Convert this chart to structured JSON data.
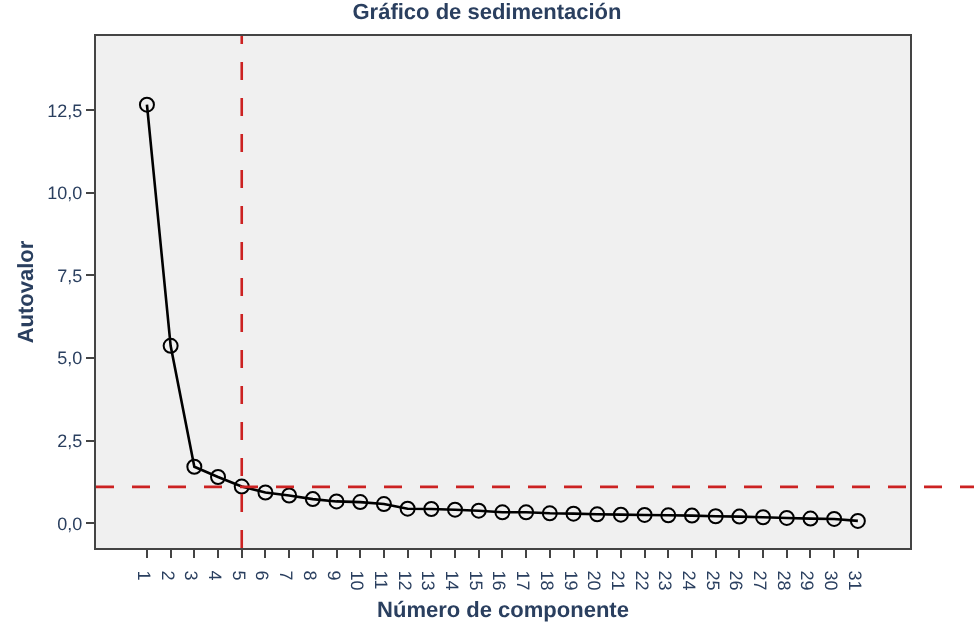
{
  "chart_data": {
    "type": "line",
    "title": "Gráfico de sedimentación",
    "xlabel": "Número de componente",
    "ylabel": "Autovalor",
    "x": [
      1,
      2,
      3,
      4,
      5,
      6,
      7,
      8,
      9,
      10,
      11,
      12,
      13,
      14,
      15,
      16,
      17,
      18,
      19,
      20,
      21,
      22,
      23,
      24,
      25,
      26,
      27,
      28,
      29,
      30,
      31
    ],
    "series": [
      {
        "color": "#000000",
        "values": [
          12.67,
          5.37,
          1.71,
          1.4,
          1.11,
          0.93,
          0.84,
          0.73,
          0.66,
          0.64,
          0.58,
          0.44,
          0.43,
          0.41,
          0.38,
          0.33,
          0.33,
          0.3,
          0.29,
          0.27,
          0.26,
          0.25,
          0.24,
          0.23,
          0.21,
          0.2,
          0.18,
          0.16,
          0.14,
          0.13,
          0.07
        ]
      }
    ],
    "xlim": [
      -1.15,
      33.2
    ],
    "xticks": [
      1,
      2,
      3,
      4,
      5,
      6,
      7,
      8,
      9,
      10,
      11,
      12,
      13,
      14,
      15,
      16,
      17,
      18,
      19,
      20,
      21,
      22,
      23,
      24,
      25,
      26,
      27,
      28,
      29,
      30,
      31
    ],
    "ylim": [
      -0.75,
      14.75
    ],
    "yticks": [
      {
        "value": 0,
        "label": "0,0"
      },
      {
        "value": 2.5,
        "label": "2,5"
      },
      {
        "value": 5,
        "label": "5,0"
      },
      {
        "value": 7.5,
        "label": "7,5"
      },
      {
        "value": 10,
        "label": "10,0"
      },
      {
        "value": 12.5,
        "label": "12,5"
      }
    ],
    "ref_lines": [
      {
        "axis": "y",
        "value": 1.1,
        "color": "#cc2222",
        "line_style": "dashed"
      },
      {
        "axis": "x",
        "value": 5,
        "color": "#cc2222",
        "line_style": "dashed"
      }
    ],
    "grid": false,
    "legend": false,
    "marker": "circle",
    "line_style": "solid"
  }
}
